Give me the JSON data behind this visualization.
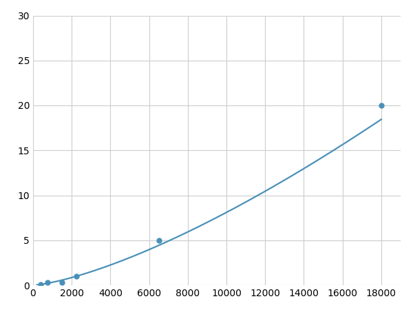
{
  "x_data": [
    400,
    750,
    1500,
    2250,
    6500,
    18000
  ],
  "y_data": [
    0.1,
    0.3,
    0.3,
    1.0,
    5.0,
    20.0
  ],
  "line_color": "#4a90b8",
  "marker_color": "#4a90b8",
  "marker_size": 5,
  "line_width": 1.6,
  "xlim": [
    0,
    19000
  ],
  "ylim": [
    0,
    30
  ],
  "xticks": [
    0,
    2000,
    4000,
    6000,
    8000,
    10000,
    12000,
    14000,
    16000,
    18000
  ],
  "yticks": [
    0,
    5,
    10,
    15,
    20,
    25,
    30
  ],
  "grid_color": "#cccccc",
  "background_color": "#ffffff",
  "tick_fontsize": 10,
  "figsize": [
    6.0,
    4.5
  ],
  "dpi": 100
}
